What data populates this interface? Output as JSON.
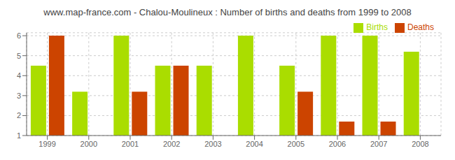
{
  "chart_data": {
    "type": "bar",
    "title": "www.map-france.com - Chalou-Moulineux : Number of births and deaths from 1999 to 2008",
    "categories": [
      "1999",
      "2000",
      "2001",
      "2002",
      "2003",
      "2004",
      "2005",
      "2006",
      "2007",
      "2008"
    ],
    "series": [
      {
        "name": "Births",
        "color": "#aadd00",
        "values": [
          4.5,
          3.2,
          6,
          4.5,
          4.5,
          6,
          4.5,
          6,
          6,
          5.2
        ]
      },
      {
        "name": "Deaths",
        "color": "#cc4400",
        "values": [
          6,
          1,
          3.2,
          4.5,
          1,
          1,
          3.2,
          1.7,
          1.7,
          1
        ]
      }
    ],
    "ylim": [
      1,
      6.15
    ],
    "yticks": [
      1,
      2,
      3,
      4,
      5,
      6
    ],
    "grid": true,
    "legend": "upper right"
  }
}
